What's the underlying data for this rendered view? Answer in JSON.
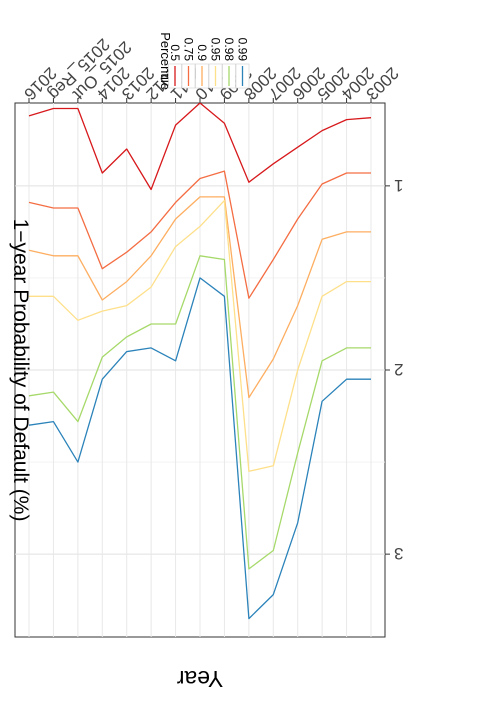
{
  "chart_data": {
    "type": "line",
    "rotation": "rotated 180 degrees (upside-down)",
    "xlabel": "Year",
    "ylabel": "1−year Probability of Default (%)",
    "categories": [
      "2003",
      "2004",
      "2005",
      "2006",
      "2007",
      "2008",
      "2009",
      "2010",
      "2011",
      "2012",
      "2013",
      "2014",
      "2015_Out",
      "2015_Reg",
      "2016"
    ],
    "yticks": [
      1,
      2,
      3
    ],
    "ylim": [
      0.55,
      3.45
    ],
    "grid": true,
    "legend": {
      "title": "Percentile",
      "placement": "top, outside plot area"
    },
    "series": [
      {
        "name": "0.5",
        "color": "#d7191c",
        "values": [
          0.63,
          0.64,
          0.7,
          0.79,
          0.88,
          0.98,
          0.66,
          0.55,
          0.67,
          1.02,
          0.8,
          0.93,
          0.58,
          0.58,
          0.62
        ]
      },
      {
        "name": "0.75",
        "color": "#f46d43",
        "values": [
          0.93,
          0.93,
          0.99,
          1.18,
          1.4,
          1.61,
          0.92,
          0.96,
          1.09,
          1.25,
          1.36,
          1.45,
          1.12,
          1.12,
          1.09
        ]
      },
      {
        "name": "0.9",
        "color": "#fdae61",
        "values": [
          1.25,
          1.25,
          1.29,
          1.65,
          1.94,
          2.15,
          1.06,
          1.06,
          1.18,
          1.38,
          1.52,
          1.62,
          1.38,
          1.38,
          1.35
        ]
      },
      {
        "name": "0.95",
        "color": "#fee08b",
        "values": [
          1.52,
          1.52,
          1.6,
          2.0,
          2.52,
          2.55,
          1.08,
          1.22,
          1.33,
          1.55,
          1.65,
          1.68,
          1.73,
          1.6,
          1.6
        ]
      },
      {
        "name": "0.98",
        "color": "#a6d96a",
        "values": [
          1.88,
          1.88,
          1.95,
          2.45,
          2.98,
          3.08,
          1.4,
          1.38,
          1.75,
          1.75,
          1.82,
          1.93,
          2.28,
          2.12,
          2.14
        ]
      },
      {
        "name": "0.99",
        "color": "#2b83ba",
        "values": [
          2.05,
          2.05,
          2.17,
          2.83,
          3.22,
          3.35,
          1.6,
          1.5,
          1.95,
          1.88,
          1.9,
          2.05,
          2.5,
          2.28,
          2.3
        ]
      }
    ]
  }
}
